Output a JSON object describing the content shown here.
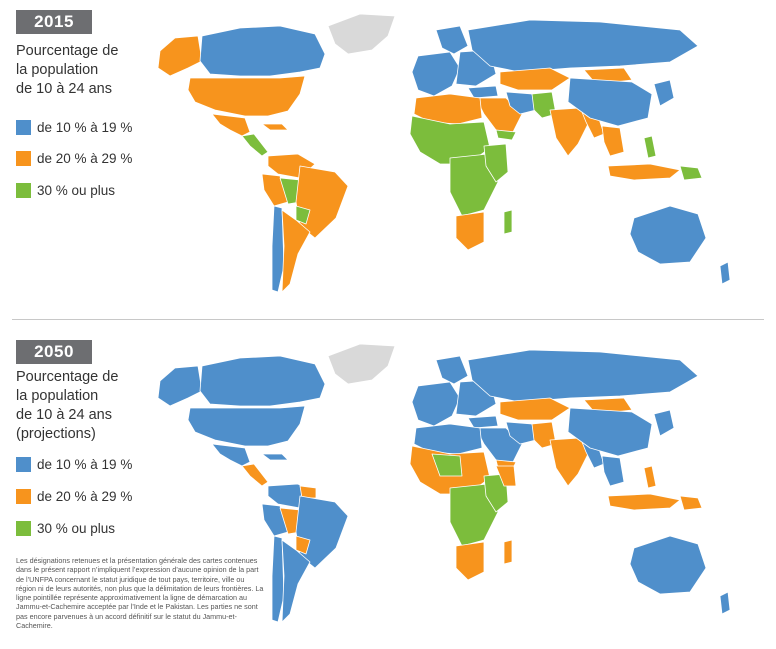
{
  "colors": {
    "range_10_19": "#4f8fcb",
    "range_20_29": "#f7941d",
    "range_30_plus": "#7cbd3c",
    "no_data": "#d9d9d9",
    "badge": "#6d6e71"
  },
  "panel_2015": {
    "year": "2015",
    "legend_title": "Pourcentage de\nla population\nde 10 à 24 ans",
    "legend": [
      {
        "label": "de 10 % à 19 %",
        "color": "#4f8fcb"
      },
      {
        "label": "de 20 % à 29 %",
        "color": "#f7941d"
      },
      {
        "label": "30 % ou plus",
        "color": "#7cbd3c"
      }
    ]
  },
  "panel_2050": {
    "year": "2050",
    "legend_title": "Pourcentage de\nla population\nde 10 à 24 ans\n(projections)",
    "legend": [
      {
        "label": "de 10 % à 19 %",
        "color": "#4f8fcb"
      },
      {
        "label": "de 20 % à 29 %",
        "color": "#f7941d"
      },
      {
        "label": "30 % ou plus",
        "color": "#7cbd3c"
      }
    ]
  },
  "disclaimer": "Les désignations retenues et la présentation générale des cartes contenues dans le présent rapport n’impliquent l’expression d’aucune opinion de la part de l’UNFPA concernant le statut juridique de tout pays, territoire, ville ou région ni de leurs autorités, non plus que la délimitation de leurs frontières. La ligne pointillée représente approximativement la ligne de démarcation au Jammu-et-Cachemire acceptée par l’Inde et le Pakistan. Les parties ne sont pas encore parvenues à un accord définitif sur le statut du Jammu-et-Cachemire."
}
